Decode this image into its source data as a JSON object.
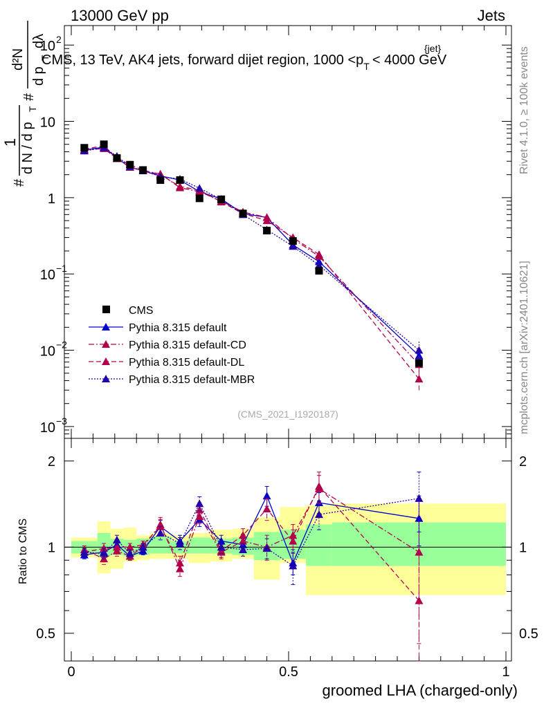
{
  "header": {
    "left": "13000 GeV pp",
    "right": "Jets",
    "title": "CMS, 13 TeV, AK4 jets, forward dijet region, 1000 <",
    "title_pt": "p",
    "title_sub": "T",
    "title_sup": "{jet}",
    "title_end": "< 4000 GeV"
  },
  "side": {
    "rivet": "Rivet 4.1.0, ≥ 100k events",
    "mcplots": "mcplots.cern.ch [arXiv:2401.10621]"
  },
  "watermark": "(CMS_2021_I1920187)",
  "axis": {
    "xlabel": "groomed LHA (charged-only)",
    "ratio_ylabel": "Ratio to CMS",
    "ylabel_hash": "#",
    "ylabel_one": "1",
    "ylabel_dN": "d N / d p",
    "ylabel_T": "T",
    "ylabel_num": "d²N",
    "ylabel_den": "d p",
    "ylabel_lambda": "dλ",
    "main_ticks": [
      {
        "value": 100,
        "base": "10",
        "exp": "2"
      },
      {
        "value": 10,
        "base": "10",
        "exp": ""
      },
      {
        "value": 1,
        "base": "1",
        "exp": ""
      },
      {
        "value": 0.1,
        "base": "10",
        "exp": "−1"
      },
      {
        "value": 0.01,
        "base": "10",
        "exp": "−2"
      },
      {
        "value": 0.001,
        "base": "10",
        "exp": "−3"
      }
    ],
    "ratio_ticks": [
      {
        "value": 2,
        "label": "2"
      },
      {
        "value": 1,
        "label": "1"
      },
      {
        "value": 0.5,
        "label": "0.5"
      }
    ],
    "x_ticks": [
      {
        "value": 0,
        "label": "0"
      },
      {
        "value": 0.5,
        "label": "0.5"
      },
      {
        "value": 1,
        "label": "1"
      }
    ]
  },
  "chart_data": {
    "type": "scatter",
    "main_yscale": "log",
    "main_ylim": [
      0.0007,
      180
    ],
    "ratio_yscale": "log",
    "ratio_ylim": [
      0.4,
      2.4
    ],
    "xlim": [
      -0.02,
      1.0
    ],
    "legend_position": "lower-left",
    "bins": [
      [
        0.0,
        0.06
      ],
      [
        0.06,
        0.09
      ],
      [
        0.09,
        0.12
      ],
      [
        0.12,
        0.15
      ],
      [
        0.15,
        0.18
      ],
      [
        0.18,
        0.23
      ],
      [
        0.23,
        0.27
      ],
      [
        0.27,
        0.32
      ],
      [
        0.32,
        0.37
      ],
      [
        0.37,
        0.42
      ],
      [
        0.42,
        0.48
      ],
      [
        0.48,
        0.54
      ],
      [
        0.54,
        0.6
      ],
      [
        0.6,
        1.0
      ]
    ],
    "x": [
      0.03,
      0.075,
      0.105,
      0.135,
      0.165,
      0.205,
      0.25,
      0.295,
      0.345,
      0.395,
      0.45,
      0.51,
      0.57,
      0.8
    ],
    "band_stat": [
      [
        0.95,
        1.05
      ],
      [
        0.93,
        1.12
      ],
      [
        0.94,
        1.07
      ],
      [
        0.93,
        1.06
      ],
      [
        0.94,
        1.07
      ],
      [
        0.95,
        1.09
      ],
      [
        0.95,
        1.05
      ],
      [
        0.95,
        1.08
      ],
      [
        0.95,
        1.07
      ],
      [
        0.94,
        1.08
      ],
      [
        0.9,
        1.13
      ],
      [
        0.91,
        1.15
      ],
      [
        0.86,
        1.2
      ],
      [
        0.86,
        1.22
      ]
    ],
    "band_total": [
      [
        0.92,
        1.08
      ],
      [
        0.81,
        1.23
      ],
      [
        0.84,
        1.16
      ],
      [
        0.89,
        1.17
      ],
      [
        0.9,
        1.1
      ],
      [
        0.91,
        1.12
      ],
      [
        0.91,
        1.1
      ],
      [
        0.88,
        1.12
      ],
      [
        0.89,
        1.15
      ],
      [
        0.91,
        1.16
      ],
      [
        0.77,
        1.27
      ],
      [
        0.88,
        1.38
      ],
      [
        0.68,
        1.4
      ],
      [
        0.68,
        1.42
      ]
    ],
    "series": [
      {
        "name": "CMS",
        "color": "#000000",
        "marker": "square",
        "values": [
          4.5,
          5.0,
          3.3,
          2.7,
          2.3,
          1.7,
          1.7,
          0.98,
          0.95,
          0.62,
          0.37,
          0.27,
          0.11,
          0.0068
        ]
      },
      {
        "name": "Pythia 8.315 default",
        "color": "#0000cc",
        "dash": "",
        "marker": "triangle",
        "values": [
          4.2,
          4.6,
          3.3,
          2.5,
          2.25,
          1.93,
          1.7,
          1.2,
          0.96,
          0.62,
          0.55,
          0.24,
          0.145,
          0.0085
        ],
        "ratio": [
          0.94,
          0.96,
          1.02,
          0.93,
          0.97,
          1.18,
          1.05,
          1.25,
          1.05,
          1.02,
          1.51,
          0.88,
          1.43,
          1.26
        ],
        "ratio_err": [
          0.03,
          0.04,
          0.04,
          0.03,
          0.03,
          0.06,
          0.05,
          0.07,
          0.05,
          0.05,
          0.12,
          0.08,
          0.12,
          0.25
        ]
      },
      {
        "name": "Pythia 8.315 default-CD",
        "color": "#b3004d",
        "dash": "8,3,2,3",
        "marker": "triangle",
        "values": [
          4.2,
          4.4,
          3.25,
          2.5,
          2.25,
          2.05,
          1.35,
          1.2,
          0.9,
          0.65,
          0.55,
          0.29,
          0.17,
          0.0065
        ],
        "ratio": [
          0.98,
          0.91,
          0.97,
          0.93,
          1.0,
          1.2,
          0.84,
          1.28,
          0.96,
          1.05,
          1.0,
          1.1,
          1.6,
          0.96
        ],
        "ratio_err": [
          0.03,
          0.04,
          0.04,
          0.03,
          0.03,
          0.07,
          0.05,
          0.07,
          0.05,
          0.06,
          0.1,
          0.1,
          0.18,
          0.5
        ]
      },
      {
        "name": "Pythia 8.315 default-DL",
        "color": "#b3004d",
        "dash": "7,4",
        "marker": "triangle",
        "values": [
          4.3,
          4.8,
          3.3,
          2.7,
          2.3,
          2.0,
          1.4,
          1.25,
          0.88,
          0.62,
          0.5,
          0.3,
          0.18,
          0.0042
        ],
        "ratio": [
          0.96,
          0.99,
          1.0,
          1.0,
          1.02,
          1.18,
          0.88,
          1.35,
          0.97,
          1.1,
          1.36,
          1.05,
          1.63,
          0.65
        ],
        "ratio_err": [
          0.03,
          0.04,
          0.04,
          0.03,
          0.03,
          0.07,
          0.05,
          0.08,
          0.05,
          0.06,
          0.12,
          0.1,
          0.2,
          0.3
        ]
      },
      {
        "name": "Pythia 8.315 default-MBR",
        "color": "#2200aa",
        "dash": "2,2",
        "marker": "triangle",
        "values": [
          4.1,
          4.5,
          3.5,
          2.55,
          2.25,
          1.9,
          1.75,
          1.33,
          0.95,
          0.6,
          0.38,
          0.23,
          0.13,
          0.01
        ],
        "ratio": [
          0.96,
          0.95,
          1.06,
          0.95,
          1.0,
          1.12,
          1.03,
          1.42,
          1.0,
          0.98,
          0.99,
          0.86,
          1.3,
          1.48
        ],
        "ratio_err": [
          0.03,
          0.04,
          0.04,
          0.03,
          0.03,
          0.06,
          0.05,
          0.08,
          0.05,
          0.05,
          0.08,
          0.12,
          0.15,
          0.35
        ]
      }
    ]
  }
}
